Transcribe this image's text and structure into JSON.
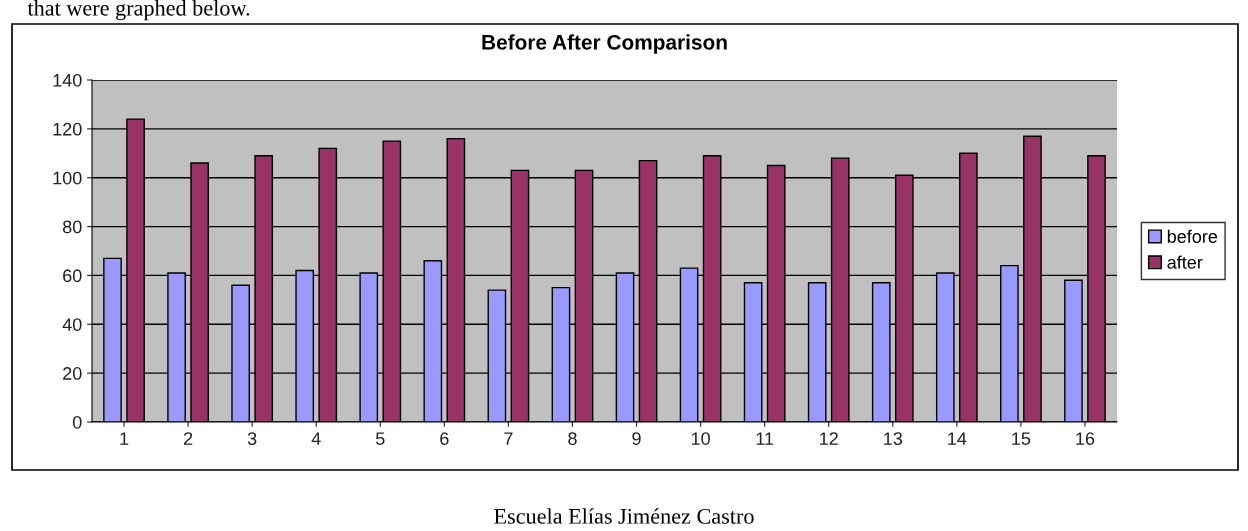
{
  "chart_data": {
    "type": "bar",
    "title": "Before After Comparison",
    "categories": [
      "1",
      "2",
      "3",
      "4",
      "5",
      "6",
      "7",
      "8",
      "9",
      "10",
      "11",
      "12",
      "13",
      "14",
      "15",
      "16"
    ],
    "series": [
      {
        "name": "before",
        "color": "#9999ff",
        "values": [
          67,
          61,
          56,
          62,
          61,
          66,
          54,
          55,
          61,
          63,
          57,
          57,
          57,
          61,
          64,
          58
        ]
      },
      {
        "name": "after",
        "color": "#993366",
        "values": [
          124,
          106,
          109,
          112,
          115,
          116,
          103,
          103,
          107,
          109,
          105,
          108,
          101,
          110,
          117,
          109
        ]
      }
    ],
    "ylim": [
      0,
      140
    ],
    "yticks": [
      0,
      20,
      40,
      60,
      80,
      100,
      120,
      140
    ],
    "grid": "y",
    "legend": "right",
    "annotations": [
      "that were graphed below.",
      "Escuela Elías Jiménez Castro"
    ]
  }
}
